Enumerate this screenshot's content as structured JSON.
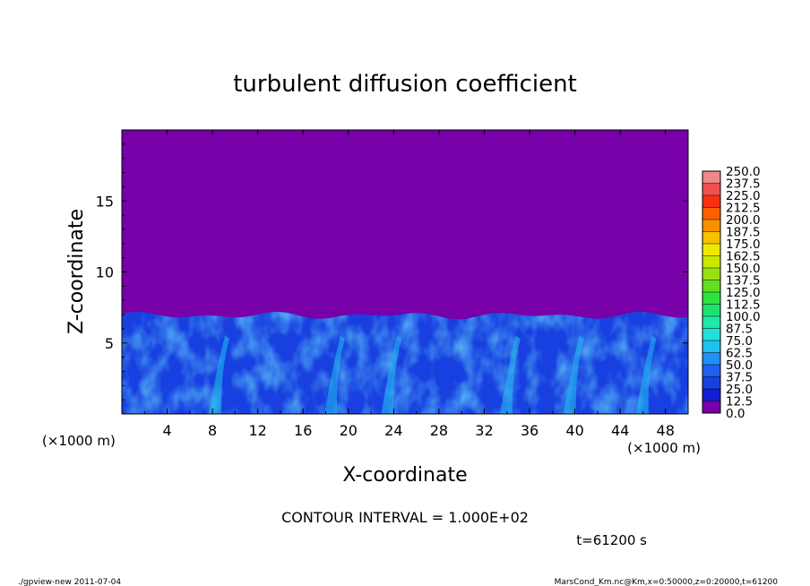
{
  "chart_data": {
    "type": "heatmap",
    "title": "turbulent diffusion coefficient",
    "xlabel": "X-coordinate",
    "ylabel": "Z-coordinate",
    "x_unit": "(×1000 m)",
    "y_unit": "(×1000 m)",
    "xlim": [
      0,
      50
    ],
    "ylim": [
      0,
      20
    ],
    "x_ticks": [
      4,
      8,
      12,
      16,
      20,
      24,
      28,
      32,
      36,
      40,
      44,
      48
    ],
    "y_ticks": [
      5,
      10,
      15
    ],
    "colorbar": {
      "levels": [
        "0.0",
        "12.5",
        "25.0",
        "37.5",
        "50.0",
        "62.5",
        "75.0",
        "87.5",
        "100.0",
        "112.5",
        "125.0",
        "137.5",
        "150.0",
        "162.5",
        "175.0",
        "187.5",
        "200.0",
        "212.5",
        "225.0",
        "237.5",
        "250.0"
      ],
      "colors": [
        "#7700a8",
        "#2000b8",
        "#1020d0",
        "#1840e0",
        "#2060f0",
        "#2090f8",
        "#20c0f0",
        "#20e0d8",
        "#20e8a8",
        "#20e070",
        "#30e040",
        "#60e020",
        "#98e010",
        "#c8e800",
        "#f0e800",
        "#f8c000",
        "#f89000",
        "#f86000",
        "#f83010",
        "#f05050",
        "#f08888"
      ]
    },
    "field": {
      "background_value": 0.0,
      "turbulent_layer_top": 7.0,
      "turbulent_layer_top_range": [
        6.0,
        7.2
      ],
      "max_value_in_field": 80.0
    },
    "annotations": {
      "contour_interval": "CONTOUR INTERVAL = 1.000E+02",
      "time": "t=61200 s"
    }
  },
  "footer": {
    "left": "./gpview-new  2011-07-04",
    "right": "MarsCond_Km.nc@Km,x=0:50000,z=0:20000,t=61200"
  }
}
